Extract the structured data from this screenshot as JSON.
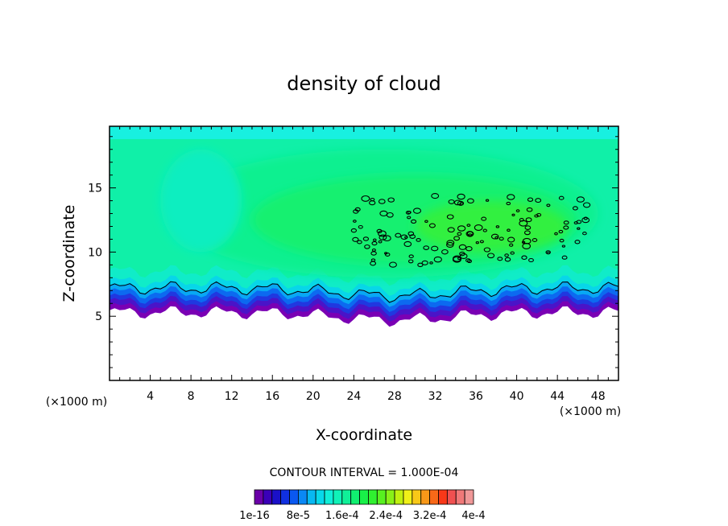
{
  "chart_data": {
    "type": "heatmap",
    "title": "density of cloud",
    "xlabel": "X-coordinate",
    "ylabel": "Z-coordinate",
    "x_unit_left": "(×1000 m)",
    "x_unit_right": "(×1000 m)",
    "xlim": [
      0,
      50
    ],
    "ylim": [
      0,
      19.8
    ],
    "x_ticks": [
      4,
      8,
      12,
      16,
      20,
      24,
      28,
      32,
      36,
      40,
      44,
      48
    ],
    "y_ticks": [
      5,
      10,
      15
    ],
    "contour_interval_label": "CONTOUR INTERVAL = 1.000E-04",
    "colorbar": {
      "colors": [
        "#6a00a8",
        "#3a00b8",
        "#1a10c8",
        "#1030e0",
        "#0a58f0",
        "#0a88f5",
        "#08b8f2",
        "#08d8ea",
        "#10eed8",
        "#10f2b8",
        "#10f098",
        "#10f070",
        "#18f048",
        "#30f030",
        "#58f020",
        "#88f018",
        "#c0f010",
        "#f0f018",
        "#f8c818",
        "#f89818",
        "#f86818",
        "#f83818",
        "#f05050",
        "#f07878",
        "#f09898"
      ],
      "tick_labels": [
        "1e-16",
        "8e-5",
        "1.6e-4",
        "2.4e-4",
        "3.2e-4",
        "4e-4"
      ]
    },
    "field": {
      "cloud_base_z": 5,
      "cloud_top_z": 19.5,
      "max_region": {
        "x": [
          30,
          45
        ],
        "z": [
          10,
          14
        ]
      }
    }
  }
}
